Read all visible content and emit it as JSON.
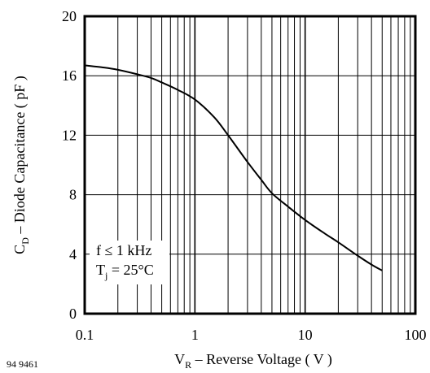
{
  "chart_data": {
    "type": "line",
    "x_scale": "log",
    "y_scale": "linear",
    "xlim": [
      0.1,
      100
    ],
    "ylim": [
      0,
      20
    ],
    "x_ticks": [
      0.1,
      1,
      10,
      100
    ],
    "x_tick_labels": [
      "0.1",
      "1",
      "10",
      "100"
    ],
    "y_ticks": [
      0,
      4,
      8,
      12,
      16,
      20
    ],
    "y_tick_labels": [
      "0",
      "4",
      "8",
      "12",
      "16",
      "20"
    ],
    "grid": true,
    "xlabel": {
      "main": "V",
      "sub": "R",
      "rest": " – Reverse Voltage ( V )"
    },
    "ylabel": {
      "main": "C",
      "sub": "D",
      "rest": " – Diode Capacitance ( pF )"
    },
    "annotation": {
      "line1": "f ≤ 1 kHz",
      "line2_main": "T",
      "line2_sub": "j",
      "line2_rest": " = 25°C"
    },
    "figure_id": "94 9461",
    "series": [
      {
        "x": [
          0.1,
          0.15,
          0.2,
          0.3,
          0.4,
          0.5,
          0.7,
          1.0,
          1.5,
          2.0,
          3.0,
          4.0,
          5.0,
          7.0,
          10,
          15,
          20,
          30,
          40,
          50
        ],
        "y": [
          16.7,
          16.55,
          16.4,
          16.1,
          15.85,
          15.55,
          15.05,
          14.4,
          13.2,
          12.0,
          10.2,
          9.0,
          8.1,
          7.2,
          6.3,
          5.4,
          4.8,
          3.9,
          3.3,
          2.9
        ]
      }
    ],
    "line_color": "#000000"
  }
}
